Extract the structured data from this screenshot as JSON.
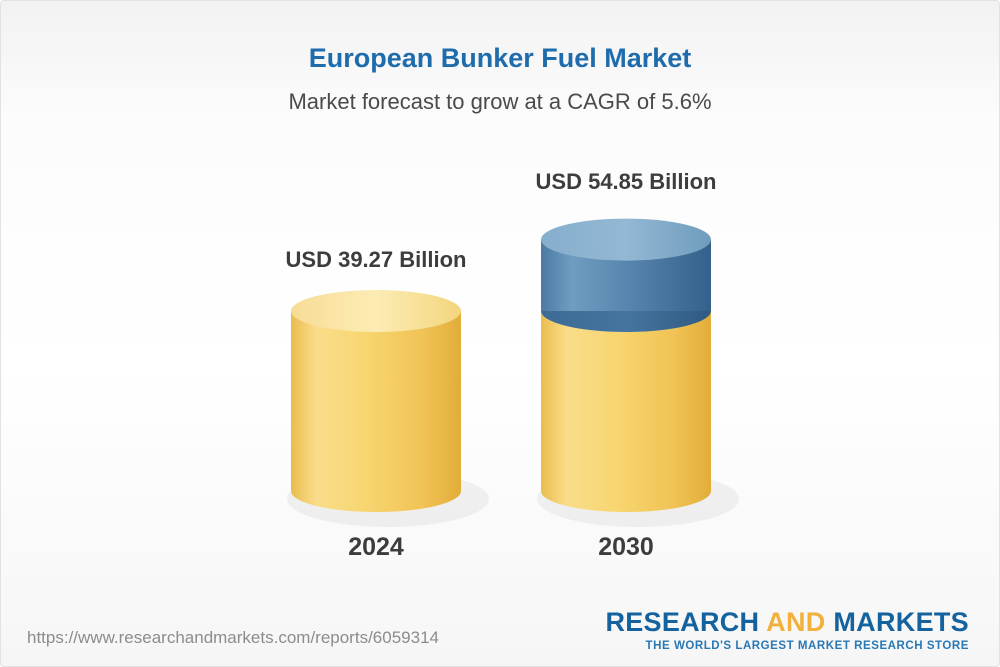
{
  "chart_data": {
    "type": "bar",
    "subtype": "3d-cylinder",
    "title": "European Bunker Fuel Market",
    "subtitle": "Market forecast to grow at a CAGR of 5.6%",
    "unit": "USD Billion",
    "cagr": "5.6%",
    "categories": [
      "2024",
      "2030"
    ],
    "values": [
      39.27,
      54.85
    ],
    "ylim": [
      0,
      60
    ],
    "grid": false,
    "legend": false,
    "bars": [
      {
        "category": "2024",
        "value": 39.27,
        "label": "USD 39.27 Billion",
        "segments": [
          {
            "role": "base",
            "value": 39.27
          }
        ]
      },
      {
        "category": "2030",
        "value": 54.85,
        "label": "USD 54.85 Billion",
        "segments": [
          {
            "role": "base",
            "value": 39.27
          },
          {
            "role": "growth",
            "value": 15.58
          }
        ]
      }
    ],
    "colors": {
      "base_body": "#f6ce67",
      "base_top": "#fbe6a3",
      "growth_body": "#4e7ea7",
      "growth_top": "#7fa8c7"
    }
  },
  "theme": {
    "title_color": "#1e6cab",
    "subtitle_color": "#4a4a4a",
    "label_color": "#3d3d3d",
    "logo_blue": "#15639e",
    "logo_gold": "#f1b13a",
    "tagline_color": "#2878b4",
    "url_color": "#8c8c8c"
  },
  "footer": {
    "url": "https://www.researchandmarkets.com/reports/6059314",
    "logo": {
      "part1": "RESEARCH",
      "part2": "AND",
      "part3": "MARKETS",
      "tagline": "THE WORLD'S LARGEST MARKET RESEARCH STORE"
    }
  }
}
